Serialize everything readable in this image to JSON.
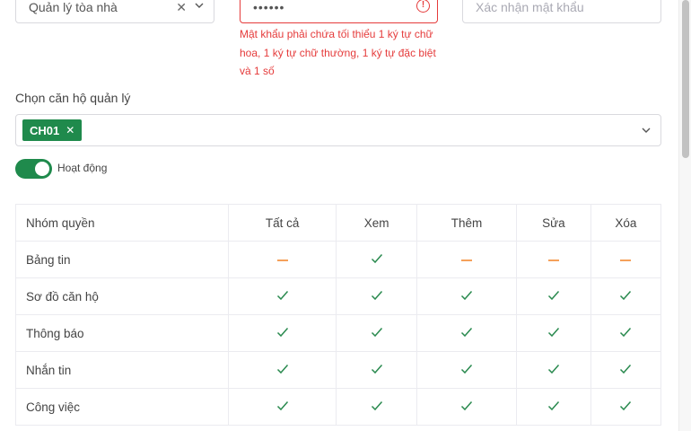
{
  "form": {
    "role_select": {
      "value": "Quản lý tòa nhà"
    },
    "password": {
      "value": "••••••",
      "error": "Mật khẩu phải chứa tối thiểu 1 ký tự chữ hoa, 1 ký tự chữ thường, 1 ký tự đặc biệt và 1 số"
    },
    "confirm_password": {
      "placeholder": "Xác nhận mật khẩu"
    },
    "apartments": {
      "label": "Chọn căn hộ quản lý",
      "tags": [
        "CH01"
      ]
    },
    "active": {
      "label": "Hoạt động",
      "on": true
    }
  },
  "permissions": {
    "headers": [
      "Nhóm quyền",
      "Tất cả",
      "Xem",
      "Thêm",
      "Sửa",
      "Xóa"
    ],
    "rows": [
      {
        "name": "Bảng tin",
        "values": [
          "partial",
          "check",
          "partial",
          "partial",
          "partial"
        ]
      },
      {
        "name": "Sơ đồ căn hộ",
        "values": [
          "check",
          "check",
          "check",
          "check",
          "check"
        ]
      },
      {
        "name": "Thông báo",
        "values": [
          "check",
          "check",
          "check",
          "check",
          "check"
        ]
      },
      {
        "name": "Nhắn tin",
        "values": [
          "check",
          "check",
          "check",
          "check",
          "check"
        ]
      },
      {
        "name": "Công việc",
        "values": [
          "check",
          "check",
          "check",
          "check",
          "check"
        ]
      }
    ]
  },
  "colors": {
    "accent": "#1f8a4c",
    "error": "#e53b3b",
    "partial": "#f5a15a"
  }
}
